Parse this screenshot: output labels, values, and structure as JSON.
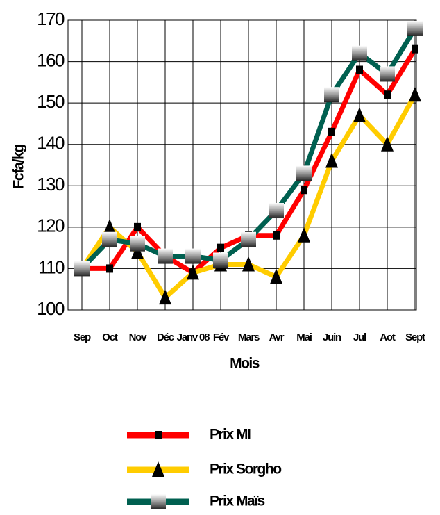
{
  "chart_data": {
    "type": "line",
    "categories": [
      "Sep",
      "Oct",
      "Nov",
      "Déc",
      "Janv 08",
      "Fév",
      "Mars",
      "Avr",
      "Mai",
      "Juin",
      "Jul",
      "Aot",
      "Sept"
    ],
    "series": [
      {
        "name": "Prix MI",
        "color": "#ff0000",
        "marker": "square",
        "values": [
          110,
          110,
          120,
          113,
          109,
          115,
          118,
          118,
          129,
          143,
          158,
          152,
          163
        ]
      },
      {
        "name": "Prix Sorgho",
        "color": "#ffcc00",
        "marker": "triangle",
        "values": [
          110,
          120,
          114,
          103,
          109,
          111,
          111,
          108,
          118,
          136,
          147,
          140,
          152
        ]
      },
      {
        "name": "Prix Maïs",
        "color": "#006050",
        "marker": "gradient-square",
        "values": [
          110,
          117,
          116,
          113,
          113,
          112,
          117,
          124,
          133,
          152,
          162,
          157,
          168
        ]
      }
    ],
    "xlabel": "Mois",
    "ylabel": "Fcfa/kg",
    "ylim": [
      100,
      170
    ],
    "yticks": [
      100,
      110,
      120,
      130,
      140,
      150,
      160,
      170
    ],
    "grid": true,
    "legend": "bottom"
  }
}
